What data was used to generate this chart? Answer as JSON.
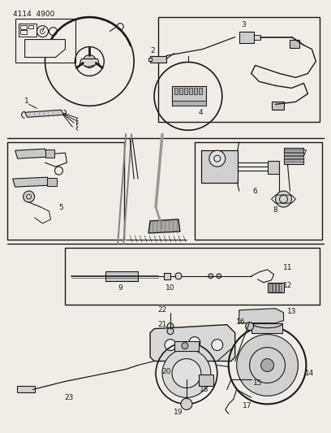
{
  "background_color": "#f0ede8",
  "line_color": "#1a1a1a",
  "header": "4114  4900",
  "fig_width": 4.08,
  "fig_height": 5.33,
  "dpi": 100
}
